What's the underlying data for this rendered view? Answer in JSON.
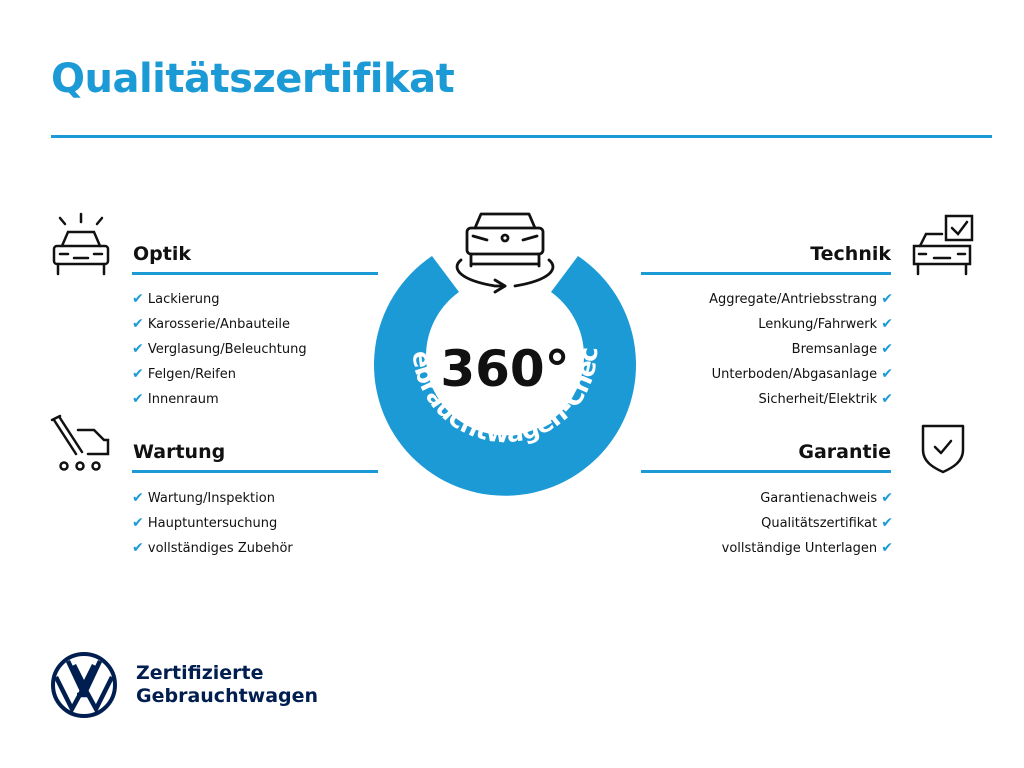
{
  "title": "Qualitätszertifikat",
  "center": {
    "big": "360°",
    "arc_text": "Gebrauchtwagen-Check"
  },
  "sections": {
    "optik": {
      "heading": "Optik",
      "items": [
        "Lackierung",
        "Karosserie/Anbauteile",
        "Verglasung/Beleuchtung",
        "Felgen/Reifen",
        "Innenraum"
      ]
    },
    "wartung": {
      "heading": "Wartung",
      "items": [
        "Wartung/Inspektion",
        "Hauptuntersuchung",
        "vollständiges Zubehör"
      ]
    },
    "technik": {
      "heading": "Technik",
      "items": [
        "Aggregate/Antriebsstrang",
        "Lenkung/Fahrwerk",
        "Bremsanlage",
        "Unterboden/Abgasanlage",
        "Sicherheit/Elektrik"
      ]
    },
    "garantie": {
      "heading": "Garantie",
      "items": [
        "Garantienachweis",
        "Qualitätszertifikat",
        "vollständige Unterlagen"
      ]
    }
  },
  "check_glyph": "✔",
  "footer": {
    "line1": "Zertifizierte",
    "line2": "Gebrauchtwagen"
  },
  "colors": {
    "accent": "#1b9ad6",
    "brand": "#001e50"
  }
}
